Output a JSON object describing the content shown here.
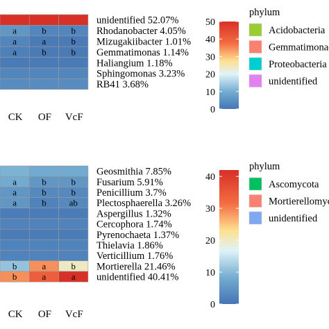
{
  "chart_data": [
    {
      "type": "heatmap",
      "title": "",
      "columns": [
        "CK",
        "OF",
        "VcF"
      ],
      "rows": [
        {
          "label": "unidentified 52.07%",
          "values": [
            50,
            50,
            52
          ],
          "letters": [
            "",
            "",
            ""
          ]
        },
        {
          "label": "Rhodanobacter 4.05%",
          "values": [
            6,
            3,
            3
          ],
          "letters": [
            "a",
            "b",
            "b"
          ]
        },
        {
          "label": "Mizugakiibacter 1.01%",
          "values": [
            3,
            1,
            1
          ],
          "letters": [
            "a",
            "a",
            "b"
          ]
        },
        {
          "label": "Gemmatimonas 1.14%",
          "values": [
            2,
            1,
            1
          ],
          "letters": [
            "a",
            "b",
            "b"
          ]
        },
        {
          "label": "Haliangium 1.18%",
          "values": [
            1,
            1,
            1
          ],
          "letters": [
            "",
            "",
            ""
          ]
        },
        {
          "label": "Sphingomonas 3.23%",
          "values": [
            3,
            3,
            3
          ],
          "letters": [
            "",
            "",
            ""
          ]
        },
        {
          "label": "RB41 3.68%",
          "values": [
            4,
            4,
            4
          ],
          "letters": [
            "",
            "",
            ""
          ]
        }
      ],
      "colorbar": {
        "min": 0,
        "max": 50,
        "ticks": [
          0,
          10,
          20,
          30,
          40,
          50
        ]
      },
      "legend": {
        "title": "phylum",
        "entries": [
          {
            "label": "Acidobacteria",
            "color": "#9acd32"
          },
          {
            "label": "Gemmatimonadetes",
            "color": "#fa8072"
          },
          {
            "label": "Proteobacteria",
            "color": "#00ced1"
          },
          {
            "label": "unidentified",
            "color": "#e180f0"
          }
        ]
      }
    },
    {
      "type": "heatmap",
      "title": "",
      "columns": [
        "CK",
        "OF",
        "VcF"
      ],
      "rows": [
        {
          "label": "Geosmithia 7.85%",
          "values": [
            9,
            8,
            8
          ],
          "letters": [
            "",
            "",
            ""
          ]
        },
        {
          "label": "Fusarium 5.91%",
          "values": [
            8,
            5,
            5
          ],
          "letters": [
            "a",
            "b",
            "b"
          ]
        },
        {
          "label": "Penicillium 3.7%",
          "values": [
            5,
            3,
            3
          ],
          "letters": [
            "a",
            "b",
            "b"
          ]
        },
        {
          "label": "Plectosphaerella 3.26%",
          "values": [
            5,
            2,
            3
          ],
          "letters": [
            "a",
            "b",
            "ab"
          ]
        },
        {
          "label": "Aspergillus 1.32%",
          "values": [
            1,
            1,
            1
          ],
          "letters": [
            "",
            "",
            ""
          ]
        },
        {
          "label": "Cercophora 1.74%",
          "values": [
            2,
            2,
            2
          ],
          "letters": [
            "",
            "",
            ""
          ]
        },
        {
          "label": "Pyrenochaeta 1.37%",
          "values": [
            1,
            1,
            1
          ],
          "letters": [
            "",
            "",
            ""
          ]
        },
        {
          "label": "Thielavia 1.86%",
          "values": [
            2,
            2,
            2
          ],
          "letters": [
            "",
            "",
            ""
          ]
        },
        {
          "label": "Verticillium 1.76%",
          "values": [
            2,
            2,
            2
          ],
          "letters": [
            "",
            "",
            ""
          ]
        },
        {
          "label": "Mortierella 21.46%",
          "values": [
            11,
            29,
            20
          ],
          "letters": [
            "b",
            "a",
            "b"
          ]
        },
        {
          "label": "unidentified 40.41%",
          "values": [
            29,
            34,
            42
          ],
          "letters": [
            "b",
            "a",
            "a"
          ]
        }
      ],
      "colorbar": {
        "min": 0,
        "max": 42,
        "ticks": [
          0,
          10,
          20,
          30,
          40
        ]
      },
      "legend": {
        "title": "phylum",
        "entries": [
          {
            "label": "Ascomycota",
            "color": "#00c060"
          },
          {
            "label": "Mortierellomycota",
            "color": "#fa8072"
          },
          {
            "label": "unidentified",
            "color": "#7fa8f0"
          }
        ]
      }
    }
  ]
}
